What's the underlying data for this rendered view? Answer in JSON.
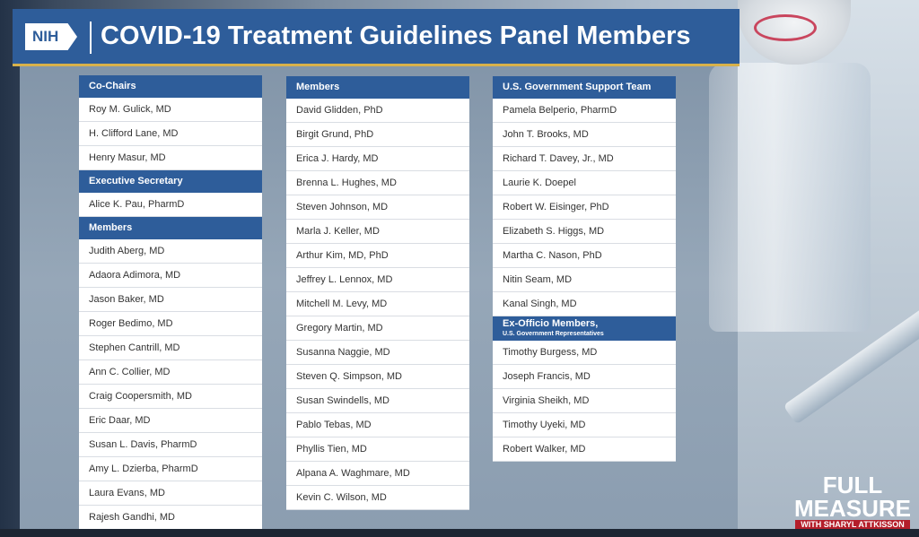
{
  "header": {
    "logo_text": "NIH",
    "title": "COVID-19 Treatment Guidelines Panel Members"
  },
  "column1": {
    "sections": [
      {
        "heading": "Co-Chairs",
        "members": [
          "Roy M. Gulick, MD",
          "H. Clifford Lane, MD",
          "Henry Masur, MD"
        ]
      },
      {
        "heading": "Executive Secretary",
        "members": [
          "Alice K. Pau, PharmD"
        ]
      },
      {
        "heading": "Members",
        "members": [
          "Judith Aberg, MD",
          "Adaora Adimora, MD",
          "Jason Baker, MD",
          "Roger Bedimo, MD",
          "Stephen Cantrill, MD",
          "Ann C. Collier, MD",
          "Craig Coopersmith, MD",
          "Eric Daar, MD",
          "Susan L. Davis, PharmD",
          "Amy L. Dzierba, PharmD",
          "Laura Evans, MD",
          "Rajesh Gandhi, MD"
        ]
      }
    ]
  },
  "column2": {
    "sections": [
      {
        "heading": "Members",
        "members": [
          "David Glidden, PhD",
          "Birgit Grund, PhD",
          "Erica J. Hardy, MD",
          "Brenna L. Hughes, MD",
          "Steven Johnson, MD",
          "Marla J. Keller, MD",
          "Arthur Kim, MD, PhD",
          "Jeffrey L. Lennox, MD",
          "Mitchell M. Levy, MD",
          "Gregory Martin, MD",
          "Susanna Naggie, MD",
          "Steven Q. Simpson, MD",
          "Susan Swindells, MD",
          "Pablo Tebas, MD",
          "Phyllis Tien, MD",
          "Alpana A. Waghmare, MD",
          "Kevin C. Wilson, MD"
        ]
      }
    ]
  },
  "column3": {
    "sections": [
      {
        "heading": "U.S. Government Support Team",
        "members": [
          "Pamela Belperio, PharmD",
          "John T. Brooks, MD",
          "Richard T. Davey, Jr., MD",
          "Laurie K. Doepel",
          "Robert W. Eisinger, PhD",
          "Elizabeth S. Higgs, MD",
          "Martha C. Nason, PhD",
          "Nitin Seam, MD",
          "Kanal Singh, MD"
        ]
      },
      {
        "heading": "Ex-Officio Members,",
        "subheading": "U.S. Government Representatives",
        "members": [
          "Timothy Burgess, MD",
          "Joseph Francis, MD",
          "Virginia Sheikh, MD",
          "Timothy Uyeki, MD",
          "Robert Walker, MD"
        ]
      }
    ]
  },
  "watermark": {
    "line1": "FULL",
    "line2": "MEASURE",
    "line3": "WITH SHARYL ATTKISSON"
  },
  "colors": {
    "header_blue": "#2e5d9a",
    "accent_gold": "#d8b14a",
    "row_bg": "#ffffff",
    "text": "#333333"
  }
}
